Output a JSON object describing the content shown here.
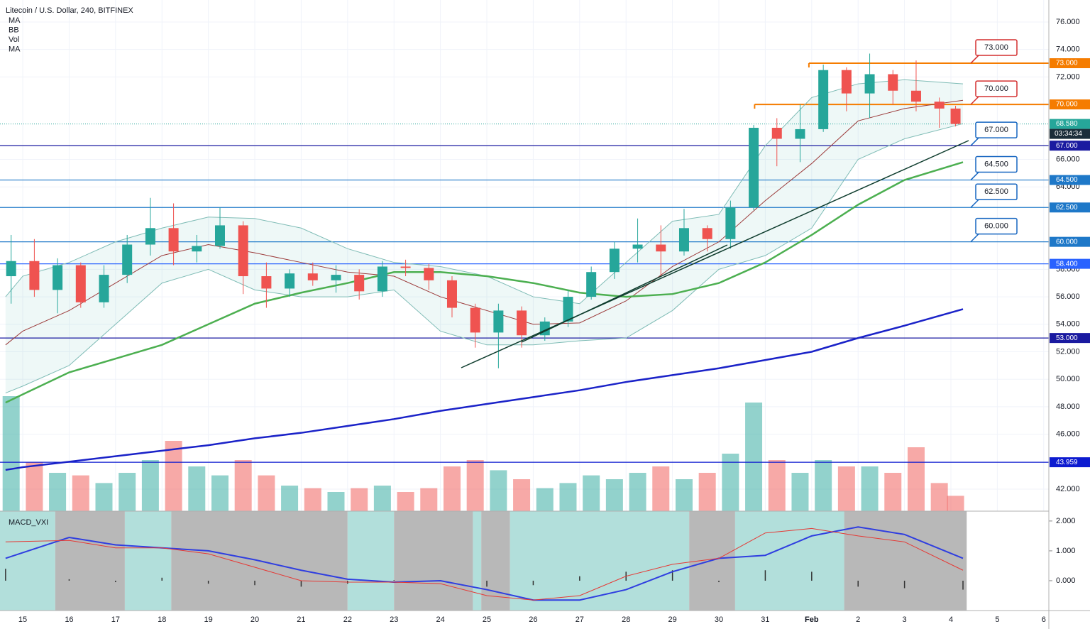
{
  "chart_data": {
    "type": "candlestick",
    "title": "Litecoin / U.S. Dollar, 240, BITFINEX",
    "indicators": [
      "MA",
      "BB",
      "Vol",
      "MA"
    ],
    "xlim": [
      -0.49,
      22.11
    ],
    "xticks": [
      {
        "value": 0,
        "label": "15"
      },
      {
        "value": 1,
        "label": "16"
      },
      {
        "value": 2,
        "label": "17"
      },
      {
        "value": 3,
        "label": "18"
      },
      {
        "value": 4,
        "label": "19"
      },
      {
        "value": 5,
        "label": "20"
      },
      {
        "value": 6,
        "label": "21"
      },
      {
        "value": 7,
        "label": "22"
      },
      {
        "value": 8,
        "label": "23"
      },
      {
        "value": 9,
        "label": "24"
      },
      {
        "value": 10,
        "label": "25"
      },
      {
        "value": 11,
        "label": "26"
      },
      {
        "value": 12,
        "label": "27"
      },
      {
        "value": 13,
        "label": "28"
      },
      {
        "value": 14,
        "label": "29"
      },
      {
        "value": 15,
        "label": "30"
      },
      {
        "value": 16,
        "label": "31"
      },
      {
        "value": 17,
        "label": "Feb"
      },
      {
        "value": 18,
        "label": "2"
      },
      {
        "value": 19,
        "label": "3"
      },
      {
        "value": 20,
        "label": "4"
      },
      {
        "value": 21,
        "label": "5"
      },
      {
        "value": 22,
        "label": "6"
      }
    ],
    "ylim": [
      40.4,
      77.6
    ],
    "yticks": [
      {
        "value": 42,
        "label": "42.000"
      },
      {
        "value": 46,
        "label": "46.000"
      },
      {
        "value": 48,
        "label": "48.000"
      },
      {
        "value": 50,
        "label": "50.000"
      },
      {
        "value": 52,
        "label": "52.000"
      },
      {
        "value": 54,
        "label": "54.000"
      },
      {
        "value": 56,
        "label": "56.000"
      },
      {
        "value": 58,
        "label": "58.000"
      },
      {
        "value": 64,
        "label": "64.000"
      },
      {
        "value": 66,
        "label": "66.000"
      },
      {
        "value": 72,
        "label": "72.000"
      },
      {
        "value": 74,
        "label": "74.000"
      },
      {
        "value": 76,
        "label": "76.000"
      }
    ],
    "grid": true,
    "up_color": "#26a69a",
    "down_color": "#ef5350",
    "candles": {
      "x": [
        -0.25,
        0.25,
        0.75,
        1.25,
        1.75,
        2.25,
        2.75,
        3.25,
        3.75,
        4.25,
        4.75,
        5.25,
        5.75,
        6.25,
        6.75,
        7.25,
        7.75,
        8.25,
        8.75,
        9.25,
        9.75,
        10.25,
        10.75,
        11.25,
        11.75,
        12.25,
        12.75,
        13.25,
        13.75,
        14.25,
        14.75,
        15.25,
        15.75,
        16.25,
        16.75,
        17.25,
        17.75,
        18.25,
        18.75,
        19.25,
        19.75,
        20.1
      ],
      "open": [
        57.5,
        58.6,
        56.5,
        58.3,
        55.6,
        57.6,
        59.8,
        61,
        59.3,
        59.7,
        61.2,
        57.5,
        56.6,
        57.7,
        57.2,
        57.6,
        56.4,
        58.2,
        58.1,
        57.2,
        55.2,
        53.4,
        55,
        53.2,
        54.2,
        56,
        57.8,
        59.5,
        59.8,
        59.3,
        61,
        60.2,
        62.5,
        68.3,
        67.5,
        68.2,
        72.5,
        70.8,
        72.2,
        71,
        70.2,
        69.7
      ],
      "high": [
        60.5,
        60.2,
        58.8,
        58.5,
        58.3,
        60.5,
        63.2,
        62.8,
        60.5,
        62.5,
        61.5,
        58.5,
        58,
        58.5,
        58.3,
        58,
        58.6,
        58.7,
        58.4,
        57.5,
        55.5,
        55.5,
        55.3,
        54.5,
        56.5,
        58.2,
        60,
        61.7,
        61.2,
        62.4,
        61.2,
        63,
        68.5,
        69,
        70,
        72.9,
        72.7,
        73.7,
        72.5,
        73.2,
        70.5,
        69.9
      ],
      "low": [
        55.5,
        56,
        54.8,
        55.2,
        55.2,
        57,
        59,
        58.3,
        58.5,
        59.5,
        56.2,
        55.2,
        56,
        56.8,
        56.3,
        55.8,
        56,
        57.5,
        56.5,
        54.5,
        52.3,
        50.8,
        52.3,
        52.8,
        53.8,
        55.8,
        57.3,
        58.5,
        57.5,
        59,
        59.3,
        59.5,
        62.3,
        65.5,
        65.8,
        68,
        69.5,
        69,
        70,
        69.5,
        68.3,
        68.4
      ],
      "close": [
        58.6,
        56.5,
        58.3,
        55.6,
        57.6,
        59.8,
        61,
        59.3,
        59.7,
        61.2,
        57.5,
        56.6,
        57.7,
        57.2,
        57.6,
        56.4,
        58.2,
        58.1,
        57.2,
        55.2,
        53.4,
        55,
        53.2,
        54.2,
        56,
        57.8,
        59.5,
        59.8,
        59.3,
        61,
        60.2,
        62.5,
        68.3,
        67.5,
        68.2,
        72.5,
        70.8,
        72.2,
        71,
        70.2,
        69.7,
        68.58
      ],
      "volume": [
        90,
        38,
        30,
        28,
        22,
        30,
        40,
        55,
        35,
        28,
        40,
        28,
        20,
        18,
        15,
        18,
        20,
        15,
        18,
        35,
        40,
        32,
        25,
        18,
        22,
        28,
        25,
        30,
        35,
        25,
        30,
        45,
        85,
        40,
        30,
        40,
        35,
        35,
        30,
        50,
        22,
        12
      ]
    },
    "volume_lim": [
      0,
      100
    ],
    "lines": {
      "x": [
        -0.37,
        0,
        1,
        2,
        3,
        4,
        5,
        6,
        7,
        8,
        9,
        10,
        11,
        12,
        13,
        14,
        15,
        16,
        17,
        18,
        19,
        20.26
      ],
      "series": [
        {
          "name": "BB upper",
          "color": "#7fbcb6",
          "values": [
            56,
            57.5,
            58.5,
            60,
            61,
            61.8,
            61.7,
            61,
            59.5,
            58.5,
            58.2,
            57.5,
            56,
            55.5,
            58.5,
            61.5,
            62,
            67,
            70.5,
            71.5,
            71.8,
            71.5
          ]
        },
        {
          "name": "BB lower",
          "color": "#7fbcb6",
          "values": [
            49,
            49.5,
            51,
            54,
            57,
            58,
            56.5,
            56,
            56,
            56.5,
            53.5,
            52.5,
            52.5,
            52.8,
            53,
            55,
            58,
            59,
            61,
            66,
            67.5,
            68.6
          ]
        },
        {
          "name": "BB basis",
          "color": "#9c3b3b",
          "values": [
            52.5,
            53.5,
            55,
            57,
            59,
            59.8,
            59.2,
            58.5,
            57.8,
            57.5,
            56,
            55,
            54,
            54.1,
            55.7,
            58.2,
            60,
            63,
            65.7,
            68.8,
            69.7,
            70.3
          ]
        },
        {
          "name": "MA 50",
          "color": "#4caf50",
          "values": [
            48.3,
            48.9,
            50.5,
            51.5,
            52.5,
            54,
            55.5,
            56.3,
            57,
            57.8,
            57.8,
            57.5,
            57,
            56.3,
            56,
            56.2,
            57,
            58.5,
            60.5,
            62.7,
            64.5,
            65.8
          ]
        },
        {
          "name": "MA 200",
          "color": "#1a22c8",
          "values": [
            43.4,
            43.6,
            44,
            44.4,
            44.8,
            45.2,
            45.7,
            46.1,
            46.6,
            47.1,
            47.7,
            48.2,
            48.7,
            49.2,
            49.8,
            50.3,
            50.8,
            51.4,
            52,
            53,
            53.9,
            55.1
          ]
        }
      ]
    },
    "levels": [
      {
        "value": 73,
        "label": "73.000",
        "color": "#f57c00",
        "start": 16.94
      },
      {
        "value": 70,
        "label": "70.000",
        "color": "#f57c00",
        "start": 15.77
      },
      {
        "value": 67,
        "label": "67.000",
        "color": "#1a1aa0"
      },
      {
        "value": 64.5,
        "label": "64.500",
        "color": "#1e78c8"
      },
      {
        "value": 62.5,
        "label": "62.500",
        "color": "#1e78c8"
      },
      {
        "value": 60,
        "label": "60.000",
        "color": "#1e78c8"
      },
      {
        "value": 58.4,
        "label": "58.400",
        "color": "#2962ff"
      },
      {
        "value": 53,
        "label": "53.000",
        "color": "#1a1aa0"
      },
      {
        "value": 43.959,
        "label": "43.959",
        "color": "#0d1bd0"
      }
    ],
    "callouts": [
      {
        "value": 73,
        "label": "73.000",
        "color": "#d32f2f"
      },
      {
        "value": 70,
        "label": "70.000",
        "color": "#d32f2f"
      },
      {
        "value": 67,
        "label": "67.000",
        "color": "#1565c0"
      },
      {
        "value": 64.5,
        "label": "64.500",
        "color": "#1565c0"
      },
      {
        "value": 62.5,
        "label": "62.500",
        "color": "#1565c0"
      },
      {
        "value": 60,
        "label": "60.000",
        "color": "#1565c0"
      }
    ],
    "last_price": {
      "value": 68.58,
      "label": "68.580",
      "countdown": "03:34:34",
      "color": "#26a69a"
    },
    "macd": {
      "title": "MACD_VXI",
      "y2lim": [
        -1.0,
        2.33
      ],
      "y2ticks": [
        {
          "value": 2,
          "label": "2.000"
        },
        {
          "value": 1,
          "label": "1.000"
        },
        {
          "value": 0,
          "label": "0.000"
        }
      ],
      "x": [
        -0.37,
        1,
        2,
        3,
        4,
        5,
        6,
        7,
        8,
        9,
        10,
        11,
        12,
        13,
        14,
        15,
        16,
        17,
        18,
        19,
        20.26
      ],
      "series": [
        {
          "name": "MACD",
          "color": "#2f3ee0",
          "values": [
            0.75,
            1.45,
            1.2,
            1.1,
            1.0,
            0.7,
            0.35,
            0.05,
            -0.05,
            0.0,
            -0.3,
            -0.65,
            -0.65,
            -0.3,
            0.3,
            0.75,
            0.85,
            1.5,
            1.8,
            1.55,
            0.75
          ]
        },
        {
          "name": "Signal",
          "color": "#e53935",
          "values": [
            1.3,
            1.35,
            1.1,
            1.1,
            0.9,
            0.45,
            0.0,
            -0.05,
            -0.05,
            -0.1,
            -0.5,
            -0.65,
            -0.5,
            0.15,
            0.55,
            0.75,
            1.6,
            1.75,
            1.5,
            1.3,
            0.35
          ]
        }
      ],
      "histogram": [
        0.4,
        0.05,
        -0.05,
        0.1,
        -0.1,
        -0.15,
        -0.2,
        -0.1,
        0.02,
        0.02,
        -0.2,
        -0.15,
        0.15,
        0.3,
        0.35,
        -0.05,
        0.35,
        0.3,
        -0.2,
        -0.25,
        -0.3
      ],
      "shading": [
        {
          "from": -0.49,
          "to": 0.7,
          "color": "#b2dfdb"
        },
        {
          "from": 0.7,
          "to": 2.2,
          "color": "#b8b8b8"
        },
        {
          "from": 2.2,
          "to": 3.2,
          "color": "#b2dfdb"
        },
        {
          "from": 3.2,
          "to": 7.0,
          "color": "#b8b8b8"
        },
        {
          "from": 7.0,
          "to": 8.0,
          "color": "#b2dfdb"
        },
        {
          "from": 8.0,
          "to": 9.7,
          "color": "#b8b8b8"
        },
        {
          "from": 9.7,
          "to": 9.88,
          "color": "#b2dfdb"
        },
        {
          "from": 9.88,
          "to": 10.5,
          "color": "#b8b8b8"
        },
        {
          "from": 10.5,
          "to": 14.36,
          "color": "#b2dfdb"
        },
        {
          "from": 14.36,
          "to": 15.35,
          "color": "#b8b8b8"
        },
        {
          "from": 15.35,
          "to": 17.7,
          "color": "#b2dfdb"
        },
        {
          "from": 17.7,
          "to": 20.34,
          "color": "#b8b8b8"
        }
      ]
    }
  }
}
